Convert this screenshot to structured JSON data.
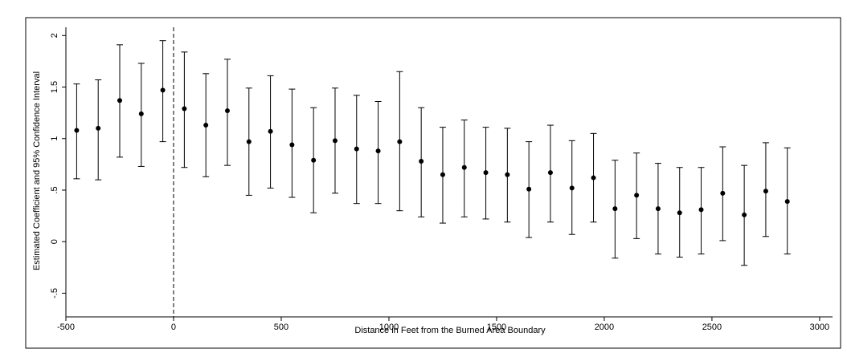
{
  "chart_data": {
    "type": "errorbar",
    "x_label": "Distance in Feet from the Burned Area Boundary",
    "y_label": "Estimated Coefficient and 95% Confidence Interval",
    "x": [
      -450,
      -350,
      -250,
      -150,
      -50,
      50,
      150,
      250,
      350,
      450,
      550,
      650,
      750,
      850,
      950,
      1050,
      1150,
      1250,
      1350,
      1450,
      1550,
      1650,
      1750,
      1850,
      1950,
      2050,
      2150,
      2250,
      2350,
      2450,
      2550,
      2650,
      2750,
      2850
    ],
    "values": [
      1.08,
      1.1,
      1.37,
      1.24,
      1.47,
      1.29,
      1.13,
      1.27,
      0.97,
      1.07,
      0.94,
      0.79,
      0.98,
      0.9,
      0.88,
      0.97,
      0.78,
      0.65,
      0.72,
      0.67,
      0.65,
      0.51,
      0.67,
      0.52,
      0.62,
      0.32,
      0.45,
      0.32,
      0.28,
      0.31,
      0.47,
      0.26,
      0.49,
      0.39
    ],
    "lower": [
      0.61,
      0.6,
      0.82,
      0.73,
      0.97,
      0.72,
      0.63,
      0.74,
      0.45,
      0.52,
      0.43,
      0.28,
      0.47,
      0.37,
      0.37,
      0.3,
      0.24,
      0.18,
      0.24,
      0.22,
      0.19,
      0.04,
      0.19,
      0.07,
      0.19,
      -0.16,
      0.03,
      -0.12,
      -0.15,
      -0.12,
      0.01,
      -0.23,
      0.05,
      -0.12
    ],
    "upper": [
      1.53,
      1.57,
      1.91,
      1.73,
      1.95,
      1.84,
      1.63,
      1.77,
      1.49,
      1.61,
      1.48,
      1.3,
      1.49,
      1.42,
      1.36,
      1.65,
      1.3,
      1.11,
      1.18,
      1.11,
      1.1,
      0.97,
      1.13,
      0.98,
      1.05,
      0.79,
      0.86,
      0.76,
      0.72,
      0.72,
      0.92,
      0.74,
      0.96,
      0.91
    ],
    "color": "#000000",
    "xlim": [
      -500,
      3060
    ],
    "ylim": [
      -0.73,
      2.08
    ],
    "xticks": [
      -500,
      0,
      500,
      1000,
      1500,
      2000,
      2500,
      3000
    ],
    "yticks": [
      {
        "value": -0.5,
        "label": "-.5"
      },
      0,
      {
        "value": 0.5,
        "label": ".5"
      },
      1,
      1.5,
      2
    ],
    "vline": 0
  }
}
